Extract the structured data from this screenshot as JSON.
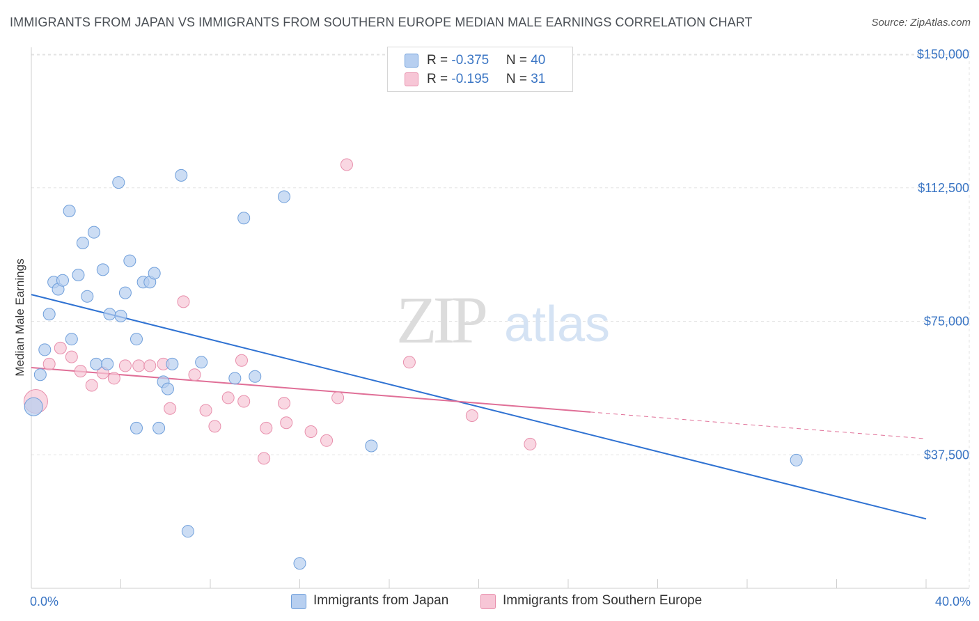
{
  "title": "IMMIGRANTS FROM JAPAN VS IMMIGRANTS FROM SOUTHERN EUROPE MEDIAN MALE EARNINGS CORRELATION CHART",
  "source": "Source: ZipAtlas.com",
  "watermark": {
    "zip": "ZIP",
    "atlas": "atlas"
  },
  "legend": {
    "japan": {
      "r_label": "R = ",
      "r_value": "-0.375",
      "n_label": "N = ",
      "n_value": "40"
    },
    "southern_europe": {
      "r_label": "R = ",
      "r_value": "-0.195",
      "n_label": "N = ",
      "n_value": "31"
    }
  },
  "chart_data": {
    "type": "scatter",
    "title": "IMMIGRANTS FROM JAPAN VS IMMIGRANTS FROM SOUTHERN EUROPE MEDIAN MALE EARNINGS CORRELATION CHART",
    "xlabel": "",
    "ylabel": "Median Male Earnings",
    "xlim": [
      0,
      40
    ],
    "ylim": [
      0,
      155000
    ],
    "x_tick_labels": [
      "0.0%",
      "40.0%"
    ],
    "y_ticks": [
      37500,
      75000,
      112500,
      150000
    ],
    "y_tick_labels": [
      "$37,500",
      "$75,000",
      "$112,500",
      "$150,000"
    ],
    "grid": true,
    "colors": {
      "japan_fill": "#b7cff0",
      "japan_stroke": "#6f9fdb",
      "japan_line": "#2f72d2",
      "se_fill": "#f7c6d6",
      "se_stroke": "#e88fac",
      "se_line": "#e06f97",
      "tick_label": "#3a75c4"
    },
    "series": [
      {
        "name": "Immigrants from Japan",
        "points": [
          [
            0.1,
            51000
          ],
          [
            0.4,
            60000
          ],
          [
            0.6,
            67000
          ],
          [
            0.8,
            77000
          ],
          [
            1.0,
            86000
          ],
          [
            1.2,
            84000
          ],
          [
            1.4,
            86500
          ],
          [
            1.7,
            106000
          ],
          [
            1.8,
            70000
          ],
          [
            2.1,
            88000
          ],
          [
            2.3,
            97000
          ],
          [
            2.5,
            82000
          ],
          [
            2.8,
            100000
          ],
          [
            2.9,
            63000
          ],
          [
            3.2,
            89500
          ],
          [
            3.4,
            63000
          ],
          [
            3.5,
            77000
          ],
          [
            3.9,
            114000
          ],
          [
            4.0,
            76500
          ],
          [
            4.2,
            83000
          ],
          [
            4.4,
            92000
          ],
          [
            4.7,
            70000
          ],
          [
            4.7,
            45000
          ],
          [
            5.0,
            86000
          ],
          [
            5.3,
            86000
          ],
          [
            5.5,
            88500
          ],
          [
            5.7,
            45000
          ],
          [
            5.9,
            58000
          ],
          [
            6.1,
            56000
          ],
          [
            6.3,
            63000
          ],
          [
            6.7,
            116000
          ],
          [
            7.0,
            16000
          ],
          [
            7.6,
            63500
          ],
          [
            9.1,
            59000
          ],
          [
            9.5,
            104000
          ],
          [
            10.0,
            59500
          ],
          [
            11.3,
            110000
          ],
          [
            12.0,
            7000
          ],
          [
            15.2,
            40000
          ],
          [
            34.2,
            36000
          ]
        ],
        "trend": {
          "x": [
            0,
            40
          ],
          "y": [
            82500,
            19500
          ]
        }
      },
      {
        "name": "Immigrants from Southern Europe",
        "points": [
          [
            0.2,
            52500
          ],
          [
            0.8,
            63000
          ],
          [
            1.3,
            67500
          ],
          [
            1.8,
            65000
          ],
          [
            2.2,
            61000
          ],
          [
            2.7,
            57000
          ],
          [
            3.2,
            60500
          ],
          [
            3.7,
            59000
          ],
          [
            4.2,
            62500
          ],
          [
            4.8,
            62500
          ],
          [
            5.3,
            62500
          ],
          [
            5.9,
            63000
          ],
          [
            6.2,
            50500
          ],
          [
            6.8,
            80500
          ],
          [
            7.3,
            60000
          ],
          [
            7.8,
            50000
          ],
          [
            8.2,
            45500
          ],
          [
            8.8,
            53500
          ],
          [
            9.4,
            64000
          ],
          [
            9.5,
            52500
          ],
          [
            10.4,
            36500
          ],
          [
            10.5,
            45000
          ],
          [
            11.3,
            52000
          ],
          [
            11.4,
            46500
          ],
          [
            12.5,
            44000
          ],
          [
            13.2,
            41500
          ],
          [
            13.7,
            53500
          ],
          [
            14.1,
            119000
          ],
          [
            16.9,
            63500
          ],
          [
            19.7,
            48500
          ],
          [
            22.3,
            40500
          ]
        ],
        "trend": {
          "x": [
            0,
            25
          ],
          "y": [
            62000,
            49500
          ]
        },
        "trend_extension": {
          "x": [
            25,
            40
          ],
          "y": [
            49500,
            42000
          ]
        }
      }
    ]
  },
  "bottom_legend": {
    "japan_label": "Immigrants from Japan",
    "southern_europe_label": "Immigrants from Southern Europe"
  }
}
